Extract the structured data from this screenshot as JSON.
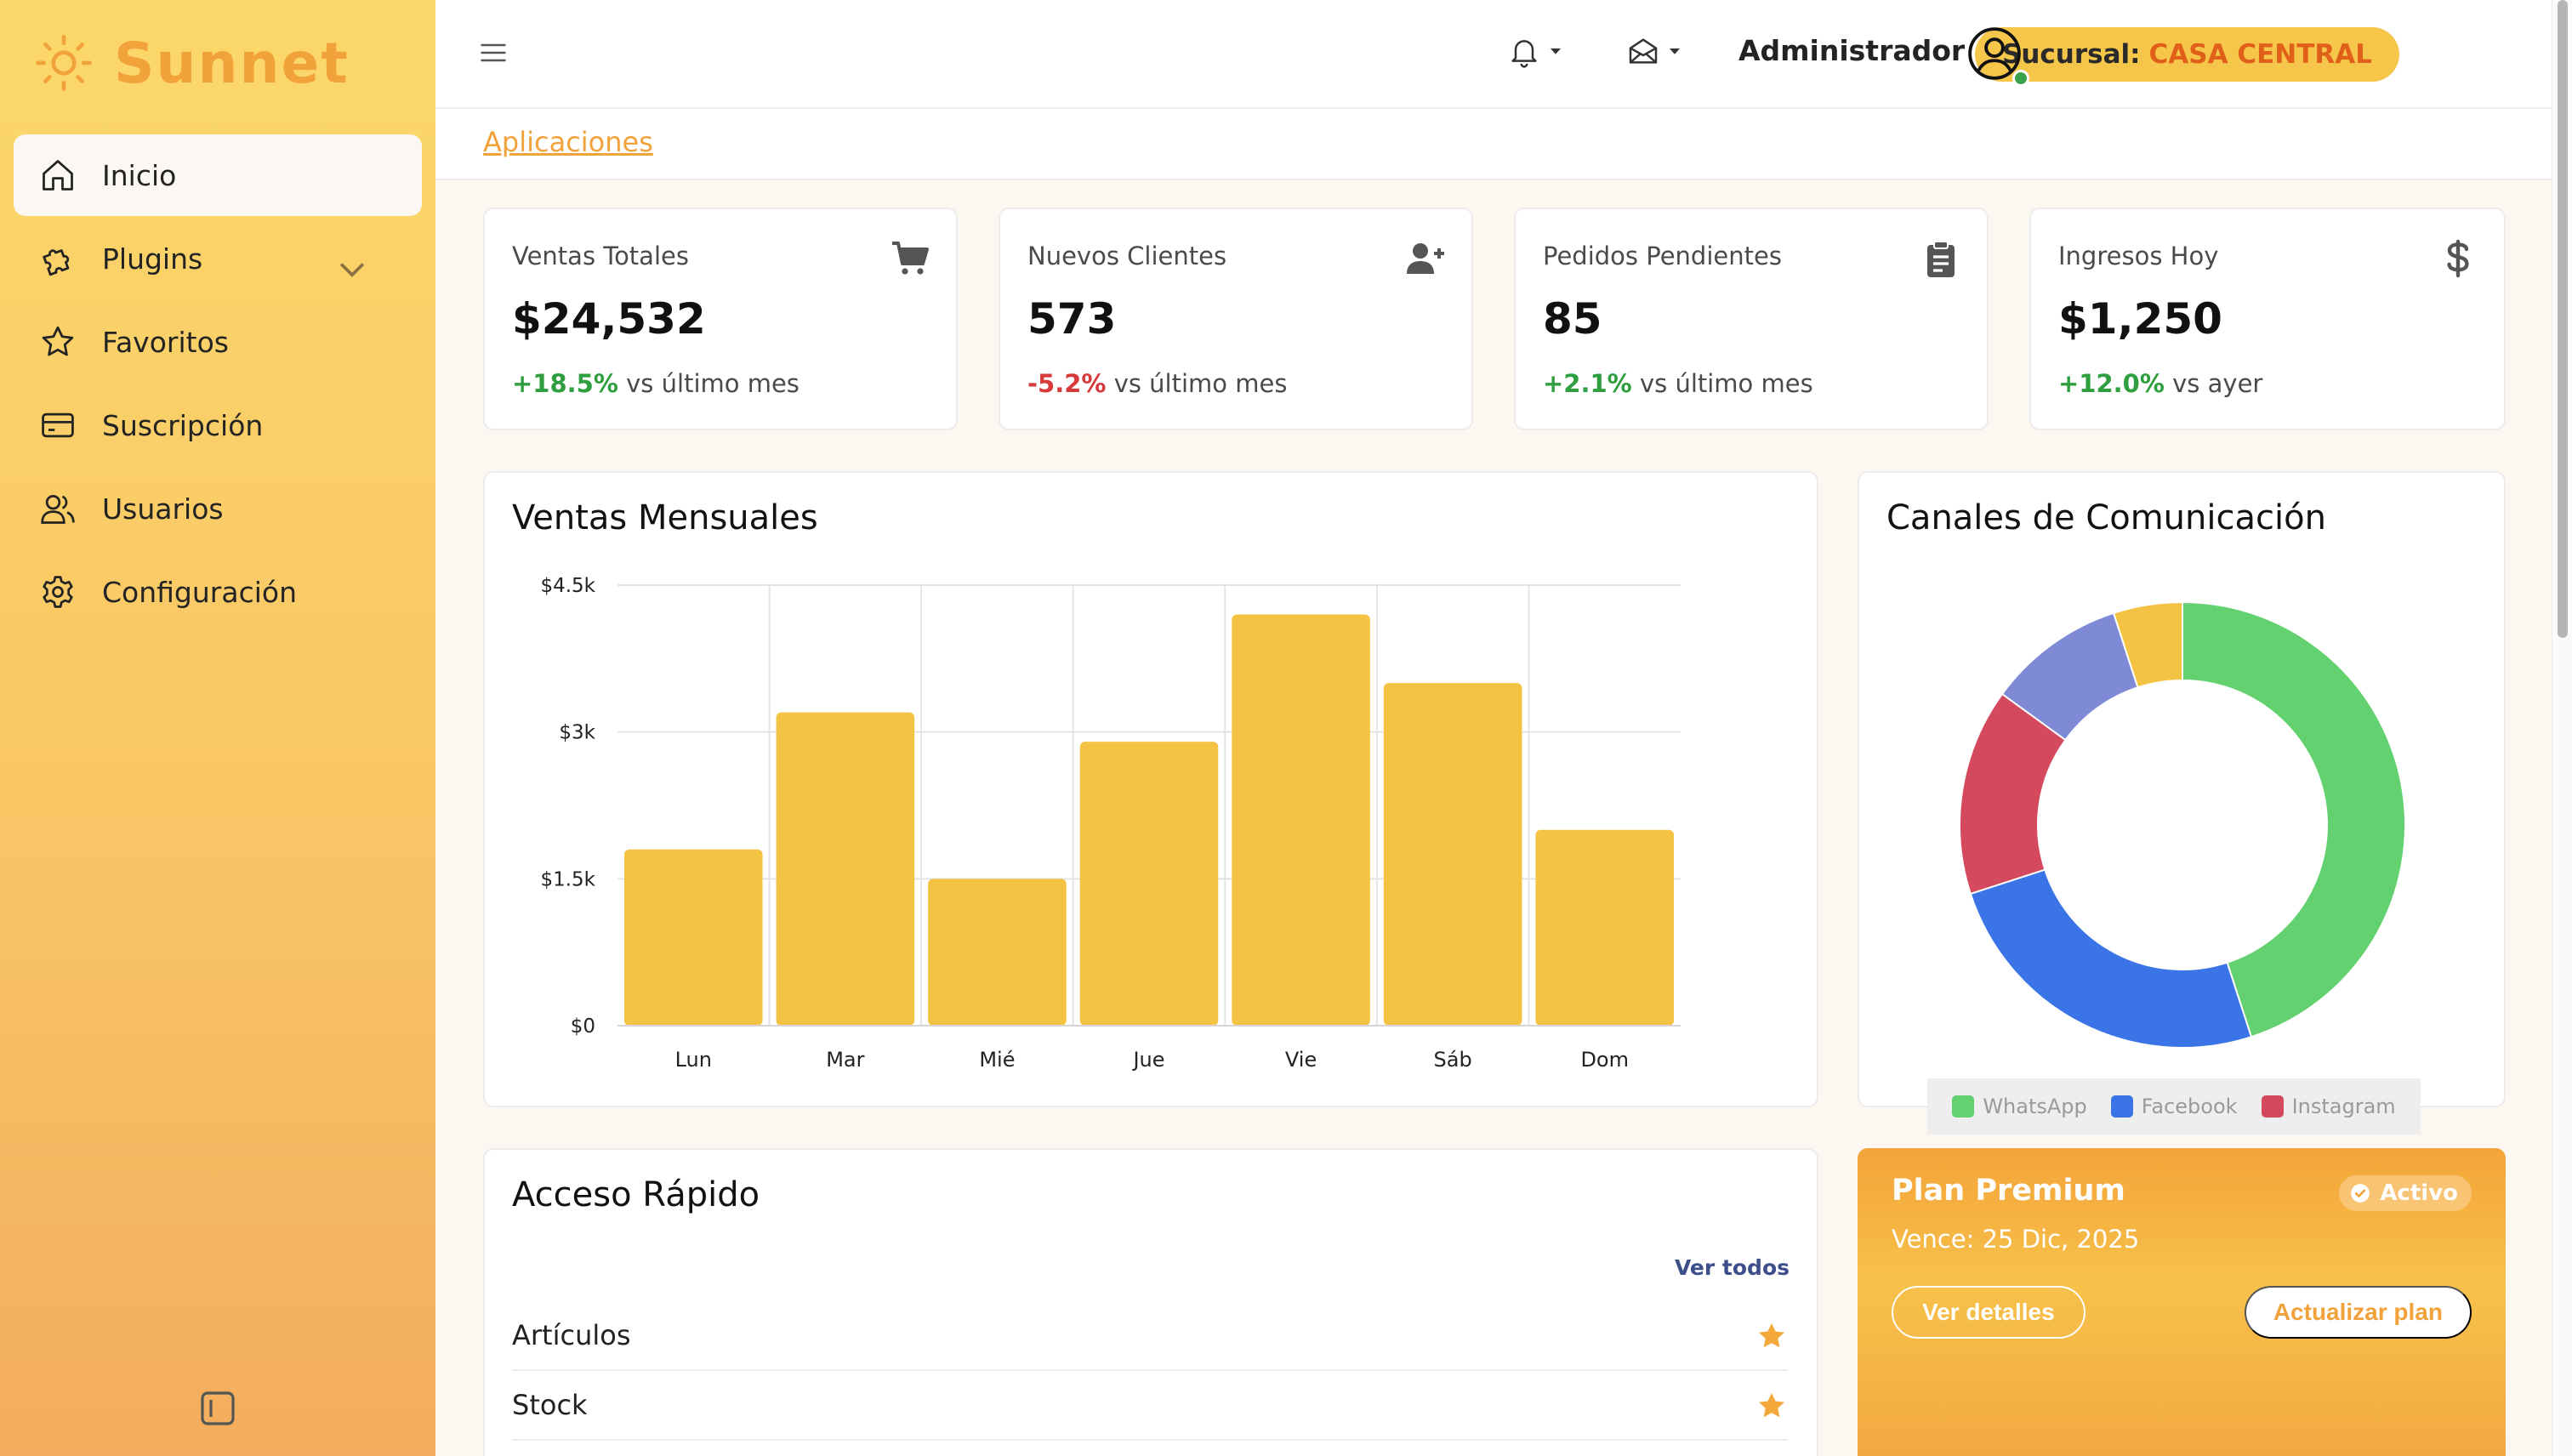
{
  "brand": {
    "name": "Sunnet"
  },
  "sidebar": {
    "items": [
      {
        "label": "Inicio",
        "icon": "home-icon",
        "active": true
      },
      {
        "label": "Plugins",
        "icon": "puzzle-icon",
        "has_submenu": true
      },
      {
        "label": "Favoritos",
        "icon": "star-icon"
      },
      {
        "label": "Suscripción",
        "icon": "credit-card-icon"
      },
      {
        "label": "Usuarios",
        "icon": "users-icon"
      },
      {
        "label": "Configuración",
        "icon": "gear-icon"
      }
    ]
  },
  "header": {
    "user": "Administrador",
    "branch_label": "Sucursal:",
    "branch_value": "CASA CENTRAL"
  },
  "breadcrumb": "Aplicaciones",
  "stats": [
    {
      "title": "Ventas Totales",
      "value": "$24,532",
      "change": "+18.5%",
      "trend": "positive",
      "suffix": "vs último mes",
      "icon": "cart-icon"
    },
    {
      "title": "Nuevos Clientes",
      "value": "573",
      "change": "-5.2%",
      "trend": "negative",
      "suffix": "vs último mes",
      "icon": "user-plus-icon"
    },
    {
      "title": "Pedidos Pendientes",
      "value": "85",
      "change": "+2.1%",
      "trend": "positive",
      "suffix": "vs último mes",
      "icon": "clipboard-icon"
    },
    {
      "title": "Ingresos Hoy",
      "value": "$1,250",
      "change": "+12.0%",
      "trend": "positive",
      "suffix": "vs ayer",
      "icon": "dollar-icon"
    }
  ],
  "sales_chart": {
    "title": "Ventas Mensuales"
  },
  "channels_chart": {
    "title": "Canales de Comunicación"
  },
  "chart_data": [
    {
      "type": "bar",
      "title": "Ventas Mensuales",
      "categories": [
        "Lun",
        "Mar",
        "Mié",
        "Jue",
        "Vie",
        "Sáb",
        "Dom"
      ],
      "values": [
        1800,
        3200,
        1500,
        2900,
        4200,
        3500,
        2000
      ],
      "ylim": [
        0,
        4500
      ],
      "yticks": [
        "$0",
        "$1.5k",
        "$3k",
        "$4.5k"
      ],
      "ytick_values": [
        0,
        1500,
        3000,
        4500
      ],
      "grid": true,
      "color": "#f5c343"
    },
    {
      "type": "pie",
      "title": "Canales de Comunicación",
      "donut": true,
      "slices": [
        {
          "label": "WhatsApp",
          "value": 45,
          "color": "#63d16f"
        },
        {
          "label": "Facebook",
          "value": 25,
          "color": "#3b74e6"
        },
        {
          "label": "Instagram",
          "value": 15,
          "color": "#d4495e"
        },
        {
          "label": "",
          "value": 10,
          "color": "#7f8ad6"
        },
        {
          "label": "",
          "value": 5,
          "color": "#f5c343"
        }
      ],
      "legend": [
        "WhatsApp",
        "Facebook",
        "Instagram"
      ],
      "legend_position": "bottom"
    }
  ],
  "quick_access": {
    "title": "Acceso Rápido",
    "see_all": "Ver todos",
    "items": [
      {
        "label": "Artículos",
        "favorite": true
      },
      {
        "label": "Stock",
        "favorite": true
      }
    ]
  },
  "plan": {
    "title": "Plan Premium",
    "status": "Activo",
    "expiry": "Vence: 25 Dic, 2025",
    "details_button": "Ver detalles",
    "upgrade_button": "Actualizar plan"
  },
  "colors": {
    "accent": "#f2a23a",
    "positive": "#2e9e3e",
    "negative": "#d63a3a",
    "bar": "#f5c343",
    "link": "#3d4e8a"
  }
}
